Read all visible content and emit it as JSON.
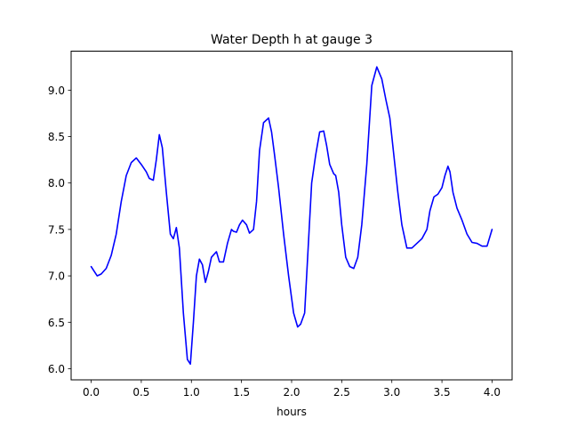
{
  "chart_data": {
    "type": "line",
    "title": "Water Depth h at gauge 3",
    "xlabel": "hours",
    "ylabel": "",
    "xlim": [
      -0.2,
      4.2
    ],
    "ylim": [
      5.88,
      9.42
    ],
    "xticks": [
      0.0,
      0.5,
      1.0,
      1.5,
      2.0,
      2.5,
      3.0,
      3.5,
      4.0
    ],
    "xtick_labels": [
      "0.0",
      "0.5",
      "1.0",
      "1.5",
      "2.0",
      "2.5",
      "3.0",
      "3.5",
      "4.0"
    ],
    "yticks": [
      6.0,
      6.5,
      7.0,
      7.5,
      8.0,
      8.5,
      9.0
    ],
    "ytick_labels": [
      "6.0",
      "6.5",
      "7.0",
      "7.5",
      "8.0",
      "8.5",
      "9.0"
    ],
    "grid": false,
    "series": [
      {
        "color": "#0000ff",
        "x": [
          0.0,
          0.03,
          0.06,
          0.1,
          0.15,
          0.2,
          0.25,
          0.3,
          0.35,
          0.4,
          0.45,
          0.5,
          0.55,
          0.58,
          0.62,
          0.65,
          0.68,
          0.71,
          0.75,
          0.79,
          0.82,
          0.85,
          0.88,
          0.92,
          0.96,
          0.99,
          1.02,
          1.05,
          1.08,
          1.11,
          1.14,
          1.17,
          1.2,
          1.25,
          1.28,
          1.32,
          1.36,
          1.4,
          1.42,
          1.45,
          1.48,
          1.51,
          1.55,
          1.58,
          1.62,
          1.65,
          1.68,
          1.72,
          1.77,
          1.8,
          1.83,
          1.87,
          1.92,
          1.97,
          2.02,
          2.06,
          2.09,
          2.13,
          2.16,
          2.2,
          2.24,
          2.28,
          2.32,
          2.35,
          2.38,
          2.42,
          2.44,
          2.47,
          2.5,
          2.54,
          2.58,
          2.62,
          2.66,
          2.7,
          2.75,
          2.8,
          2.85,
          2.9,
          2.94,
          2.98,
          3.02,
          3.06,
          3.1,
          3.15,
          3.2,
          3.25,
          3.3,
          3.35,
          3.38,
          3.42,
          3.46,
          3.5,
          3.53,
          3.56,
          3.58,
          3.61,
          3.65,
          3.7,
          3.75,
          3.8,
          3.85,
          3.9,
          3.95,
          4.0
        ],
        "y": [
          7.1,
          7.05,
          7.0,
          7.02,
          7.08,
          7.22,
          7.45,
          7.8,
          8.08,
          8.22,
          8.27,
          8.2,
          8.12,
          8.05,
          8.03,
          8.25,
          8.52,
          8.38,
          7.9,
          7.45,
          7.4,
          7.52,
          7.3,
          6.6,
          6.1,
          6.05,
          6.5,
          7.0,
          7.18,
          7.12,
          6.93,
          7.05,
          7.2,
          7.26,
          7.15,
          7.15,
          7.35,
          7.5,
          7.48,
          7.47,
          7.55,
          7.6,
          7.55,
          7.46,
          7.5,
          7.8,
          8.35,
          8.65,
          8.7,
          8.55,
          8.3,
          7.95,
          7.45,
          7.0,
          6.6,
          6.45,
          6.48,
          6.6,
          7.2,
          8.0,
          8.3,
          8.55,
          8.56,
          8.4,
          8.2,
          8.1,
          8.08,
          7.9,
          7.55,
          7.2,
          7.1,
          7.08,
          7.2,
          7.55,
          8.2,
          9.05,
          9.25,
          9.12,
          8.9,
          8.7,
          8.3,
          7.9,
          7.55,
          7.3,
          7.3,
          7.35,
          7.4,
          7.5,
          7.7,
          7.85,
          7.88,
          7.95,
          8.08,
          8.18,
          8.12,
          7.9,
          7.73,
          7.6,
          7.45,
          7.36,
          7.35,
          7.32,
          7.32,
          7.5
        ]
      }
    ]
  }
}
